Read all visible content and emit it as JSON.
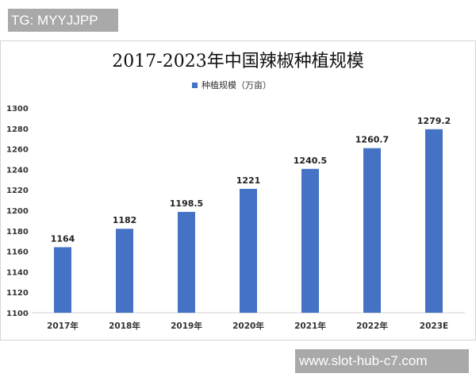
{
  "watermarks": {
    "top": "TG: MYYJJPP",
    "bottom": "www.slot-hub-c7.com"
  },
  "chart_data": {
    "type": "bar",
    "title": "2017-2023年中国辣椒种植规模",
    "categories": [
      "2017年",
      "2018年",
      "2019年",
      "2020年",
      "2021年",
      "2022年",
      "2023E"
    ],
    "series": [
      {
        "name": "种植规模（万亩）",
        "values": [
          1164,
          1182,
          1198.5,
          1221,
          1240.5,
          1260.7,
          1279.2
        ],
        "labels": [
          "1164",
          "1182",
          "1198.5",
          "1221",
          "1240.5",
          "1260.7",
          "1279.2"
        ]
      }
    ],
    "ylim": [
      1100,
      1300
    ],
    "yticks": [
      1100,
      1120,
      1140,
      1160,
      1180,
      1200,
      1220,
      1240,
      1260,
      1280,
      1300
    ],
    "grid": false,
    "legend": "top",
    "colors": {
      "bar": "#4472c4"
    }
  }
}
